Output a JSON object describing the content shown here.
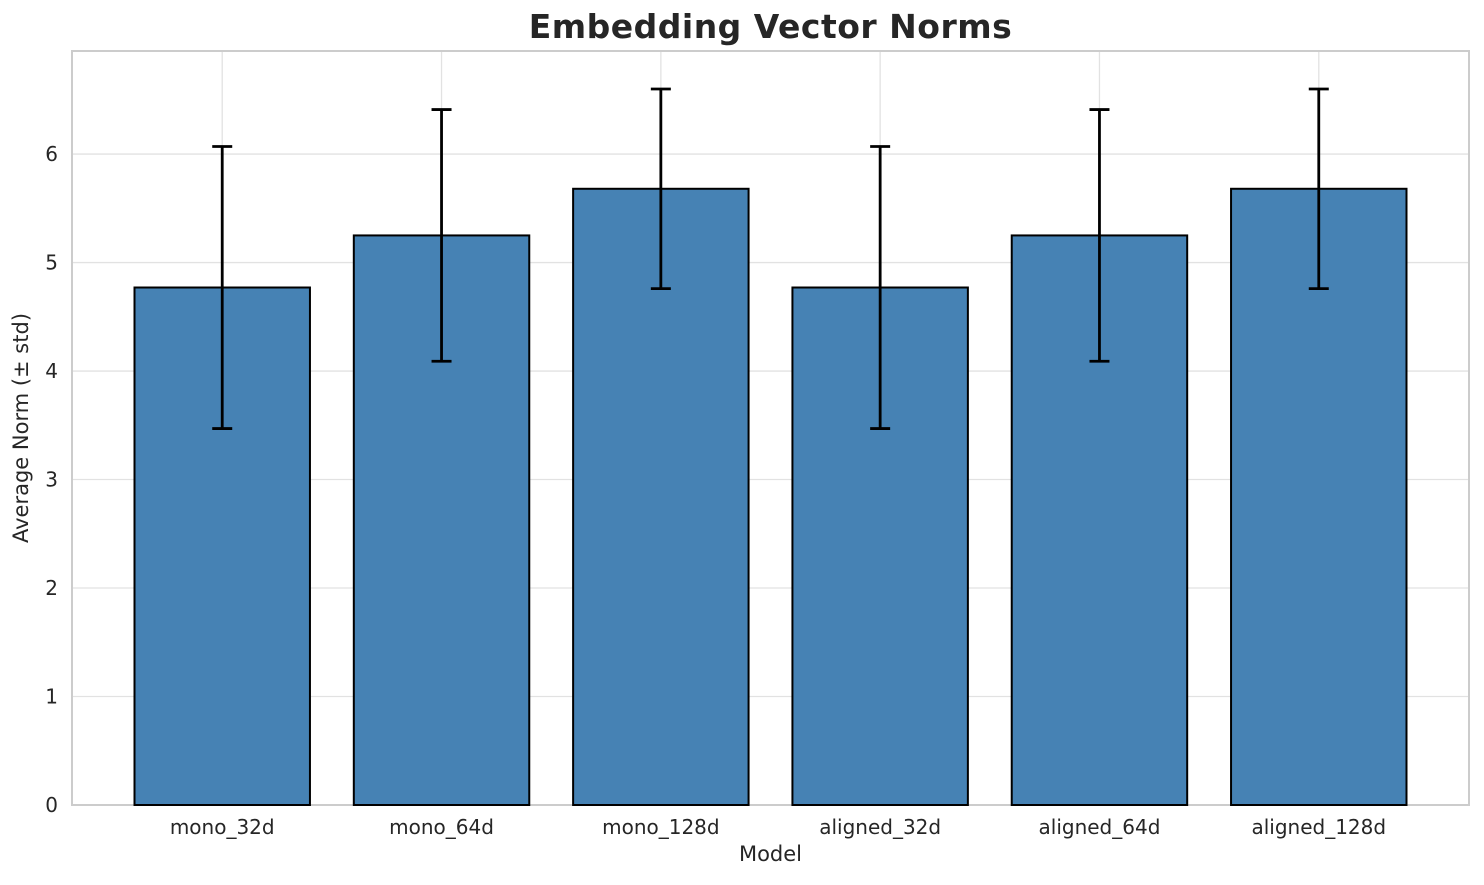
{
  "chart_data": {
    "type": "bar",
    "title": "Embedding Vector Norms",
    "xlabel": "Model",
    "ylabel": "Average Norm (± std)",
    "categories": [
      "mono_32d",
      "mono_64d",
      "mono_128d",
      "aligned_32d",
      "aligned_64d",
      "aligned_128d"
    ],
    "values": [
      4.77,
      5.25,
      5.68,
      4.77,
      5.25,
      5.68
    ],
    "errors": [
      1.3,
      1.16,
      0.92,
      1.3,
      1.16,
      0.92
    ],
    "yticks": [
      0,
      1,
      2,
      3,
      4,
      5,
      6
    ],
    "ylim": [
      0,
      6.95
    ],
    "grid": true,
    "legend_position": "none",
    "bar_color": "#4682b4",
    "bar_edge_color": "#000000",
    "errorbar_color": "#000000",
    "grid_color": "#e2e2e2",
    "frame_color": "#cccccc",
    "background_color": "#ffffff",
    "text_color": "#262626"
  }
}
